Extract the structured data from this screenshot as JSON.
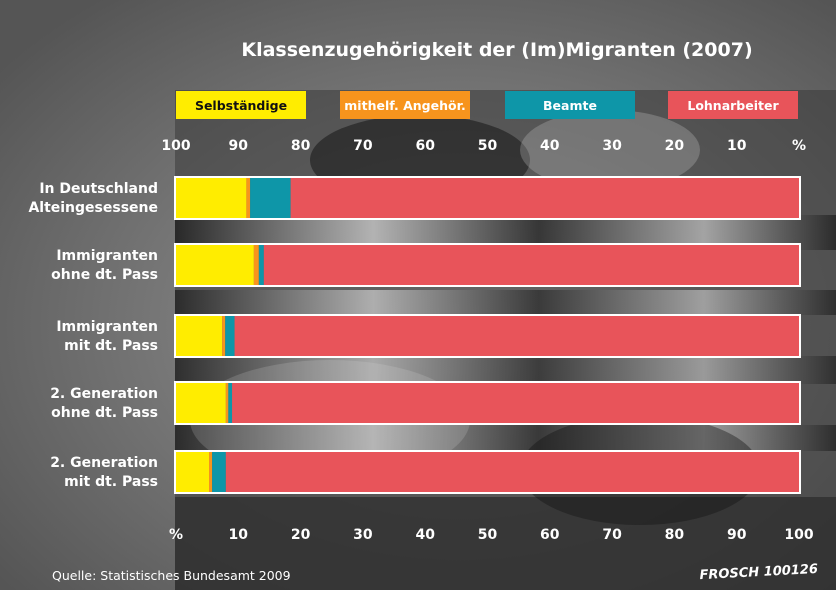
{
  "chart_data": {
    "type": "bar",
    "stacked": true,
    "orientation": "horizontal",
    "title": "Klassenzugehörigkeit der (Im)Migranten (2007)",
    "categories": [
      [
        "In Deutschland",
        "Alteingesessene"
      ],
      [
        "Immigranten",
        "ohne dt. Pass"
      ],
      [
        "Immigranten",
        "mit dt. Pass"
      ],
      [
        "2. Generation",
        "ohne dt. Pass"
      ],
      [
        "2. Generation",
        "mit dt. Pass"
      ]
    ],
    "series": [
      {
        "name": "Selbständige",
        "color": "#ffed00",
        "values": [
          11.3,
          12.5,
          7.4,
          8.0,
          5.3
        ]
      },
      {
        "name": "mithelf. Angehör.",
        "color": "#f7941d",
        "values": [
          0.6,
          0.8,
          0.5,
          0.4,
          0.5
        ]
      },
      {
        "name": "Beamte",
        "color": "#0e96a8",
        "values": [
          6.5,
          0.8,
          1.5,
          0.6,
          2.2
        ]
      },
      {
        "name": "Lohnarbeiter",
        "color": "#e8545a",
        "values": [
          81.6,
          85.9,
          90.6,
          91.0,
          92.0
        ]
      }
    ],
    "xlim": [
      0,
      100
    ],
    "top_ticks": [
      "100",
      "90",
      "80",
      "70",
      "60",
      "50",
      "40",
      "30",
      "20",
      "10",
      "%"
    ],
    "bottom_ticks": [
      "%",
      "10",
      "20",
      "30",
      "40",
      "50",
      "60",
      "70",
      "80",
      "90",
      "100"
    ],
    "legend_position": "top",
    "grid": false
  },
  "source": "Quelle: Statistisches Bundesamt 2009",
  "signature": "FROSCH 100126",
  "colors": {
    "background": "#6f6f6f",
    "text": "#ffffff",
    "bar_border": "#ffffff"
  }
}
